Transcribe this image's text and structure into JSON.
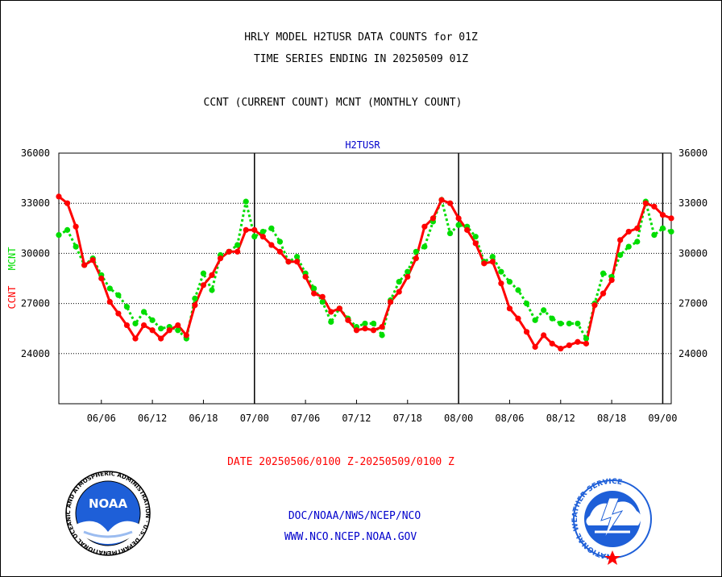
{
  "titles": {
    "line1": "HRLY MODEL H2TUSR DATA COUNTS for 01Z",
    "line2": "TIME SERIES ENDING IN 20250509 01Z",
    "line3": "CCNT (CURRENT COUNT) MCNT (MONTHLY COUNT)"
  },
  "footer": {
    "date_range": "DATE 20250506/0100 Z-20250509/0100 Z",
    "link1": "DOC/NOAA/NWS/NCEP/NCO",
    "link2": "WWW.NCO.NCEP.NOAA.GOV"
  },
  "logos": {
    "noaa_text": "NOAA",
    "noaa_ring": "NATIONAL OCEANIC AND ATMOSPHERIC ADMINISTRATION · U.S. DEPARTMENT OF COMMERCE ·",
    "nws_ring": "NATIONAL WEATHER SERVICE"
  },
  "colors": {
    "ccnt": "#ff0000",
    "mcnt": "#00dd00",
    "plot_label": "#0000cc"
  },
  "chart_data": {
    "type": "line",
    "title": "H2TUSR",
    "ylabel_left_parts": [
      {
        "text": "CCNT",
        "color": "#ff0000"
      },
      {
        "text": "MCNT",
        "color": "#00dd00"
      }
    ],
    "ylim": [
      21000,
      36000
    ],
    "yticks": [
      24000,
      27000,
      30000,
      33000,
      36000
    ],
    "ytick_labels": [
      "24000",
      "27000",
      "30000",
      "33000",
      "36000"
    ],
    "grid": true,
    "xlim": [
      0,
      72
    ],
    "xticks": [
      {
        "x": 5,
        "label": "06/06"
      },
      {
        "x": 11,
        "label": "06/12"
      },
      {
        "x": 17,
        "label": "06/18"
      },
      {
        "x": 23,
        "label": "07/00"
      },
      {
        "x": 29,
        "label": "07/06"
      },
      {
        "x": 35,
        "label": "07/12"
      },
      {
        "x": 41,
        "label": "07/18"
      },
      {
        "x": 47,
        "label": "08/00"
      },
      {
        "x": 53,
        "label": "08/06"
      },
      {
        "x": 59,
        "label": "08/12"
      },
      {
        "x": 65,
        "label": "08/18"
      },
      {
        "x": 71,
        "label": "09/00"
      }
    ],
    "day_boundaries": [
      23,
      47,
      71
    ],
    "series": [
      {
        "name": "CCNT",
        "color": "#ff0000",
        "x": [
          0,
          1,
          2,
          3,
          4,
          5,
          6,
          7,
          8,
          9,
          10,
          11,
          12,
          13,
          14,
          15,
          16,
          17,
          18,
          19,
          20,
          21,
          22,
          23,
          24,
          25,
          26,
          27,
          28,
          29,
          30,
          31,
          32,
          33,
          34,
          35,
          36,
          37,
          38,
          39,
          40,
          41,
          42,
          43,
          44,
          45,
          46,
          47,
          48,
          49,
          50,
          51,
          52,
          53,
          54,
          55,
          56,
          57,
          58,
          59,
          60,
          61,
          62,
          63,
          64,
          65,
          66,
          67,
          68,
          69,
          70,
          71,
          72
        ],
        "values": [
          33400,
          33000,
          31600,
          29300,
          29600,
          28500,
          27100,
          26400,
          25700,
          24900,
          25700,
          25400,
          24900,
          25400,
          25700,
          25100,
          26900,
          28100,
          28700,
          29700,
          30100,
          30100,
          31400,
          31400,
          31000,
          30500,
          30100,
          29500,
          29500,
          28600,
          27600,
          27400,
          26500,
          26700,
          26000,
          25400,
          25500,
          25400,
          25600,
          27100,
          27700,
          28600,
          29700,
          31600,
          32100,
          33200,
          33000,
          32100,
          31400,
          30600,
          29400,
          29500,
          28200,
          26700,
          26100,
          25300,
          24400,
          25100,
          24600,
          24300,
          24500,
          24700,
          24600,
          26900,
          27600,
          28400,
          30800,
          31300,
          31500,
          33000,
          32800,
          32300,
          32100
        ]
      },
      {
        "name": "MCNT",
        "color": "#00dd00",
        "x": [
          0,
          1,
          2,
          3,
          4,
          5,
          6,
          7,
          8,
          9,
          10,
          11,
          12,
          13,
          14,
          15,
          16,
          17,
          18,
          19,
          20,
          21,
          22,
          23,
          24,
          25,
          26,
          27,
          28,
          29,
          30,
          31,
          32,
          33,
          34,
          35,
          36,
          37,
          38,
          39,
          40,
          41,
          42,
          43,
          44,
          45,
          46,
          47,
          48,
          49,
          50,
          51,
          52,
          53,
          54,
          55,
          56,
          57,
          58,
          59,
          60,
          61,
          62,
          63,
          64,
          65,
          66,
          67,
          68,
          69,
          70,
          71,
          72
        ],
        "values": [
          31100,
          31400,
          30400,
          29300,
          29700,
          28700,
          27900,
          27500,
          26800,
          25800,
          26500,
          26000,
          25500,
          25600,
          25400,
          24900,
          27300,
          28800,
          27800,
          29900,
          30100,
          30500,
          33100,
          31000,
          31300,
          31500,
          30700,
          29500,
          29800,
          28800,
          27900,
          27100,
          25900,
          26700,
          26100,
          25600,
          25800,
          25800,
          25100,
          27200,
          28300,
          28900,
          30100,
          30400,
          31900,
          33200,
          31200,
          31700,
          31600,
          31000,
          29500,
          29800,
          28900,
          28300,
          27800,
          27000,
          26000,
          26600,
          26100,
          25800,
          25800,
          25800,
          24900,
          27000,
          28800,
          28600,
          29900,
          30400,
          30700,
          33100,
          31100,
          31500,
          31300
        ]
      }
    ]
  }
}
